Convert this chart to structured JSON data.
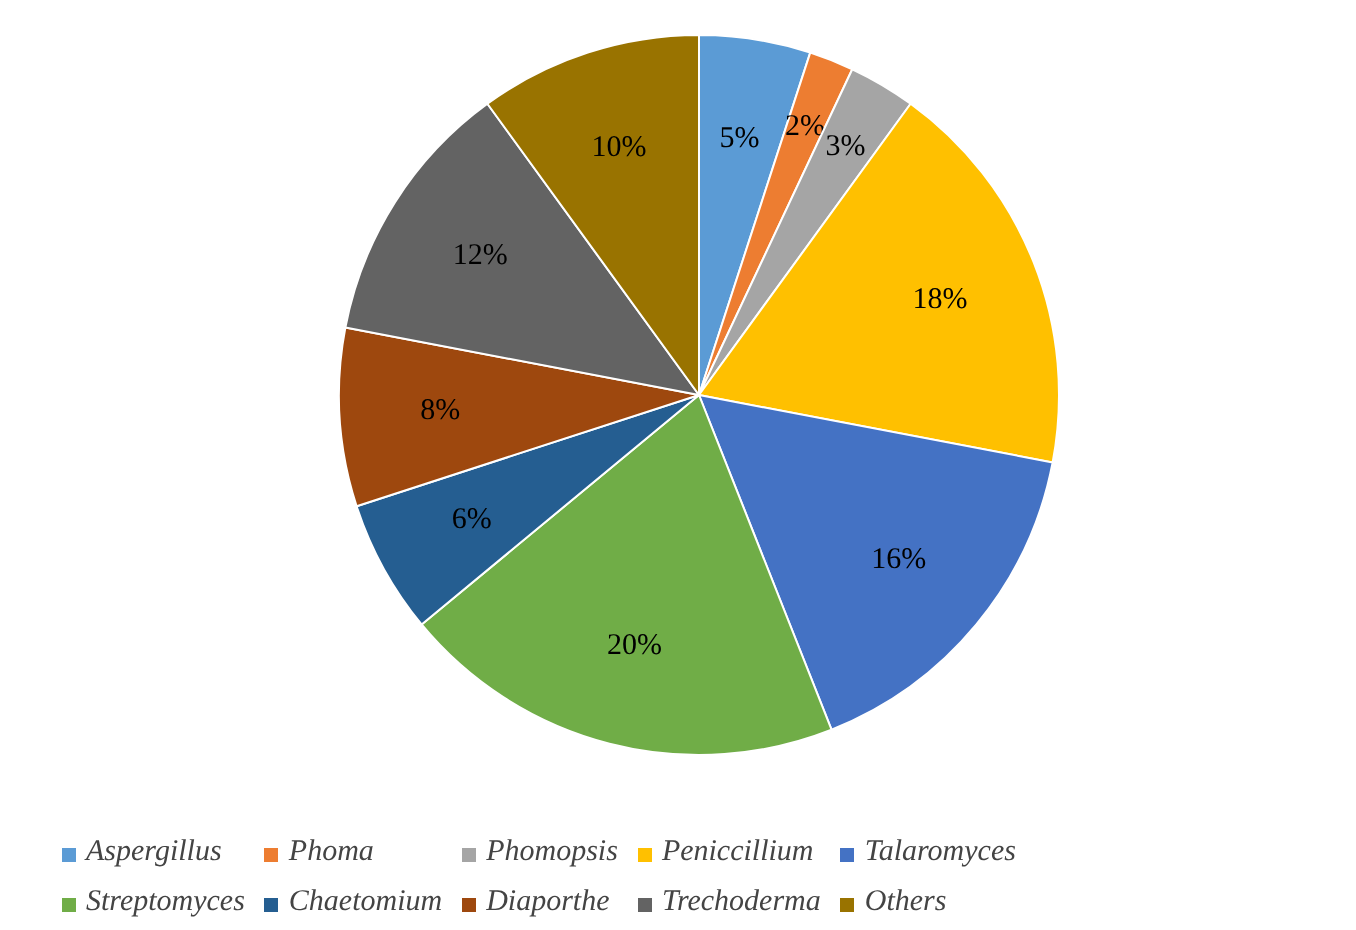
{
  "chart_data": {
    "type": "pie",
    "categories": [
      "Aspergillus",
      "Phoma",
      "Phomopsis",
      "Peniccillium",
      "Talaromyces",
      "Streptomyces",
      "Chaetomium",
      "Diaporthe",
      "Trechoderma",
      "Others"
    ],
    "values": [
      5,
      2,
      3,
      18,
      16,
      20,
      6,
      8,
      12,
      10
    ],
    "value_labels": [
      "5%",
      "2%",
      "3%",
      "18%",
      "16%",
      "20%",
      "6%",
      "8%",
      "12%",
      "10%"
    ],
    "colors": [
      "#5b9bd5",
      "#ed7d31",
      "#a5a5a5",
      "#ffc000",
      "#4472c4",
      "#70ad47",
      "#255e91",
      "#9e480e",
      "#636363",
      "#997300"
    ],
    "legend": "bottom"
  }
}
